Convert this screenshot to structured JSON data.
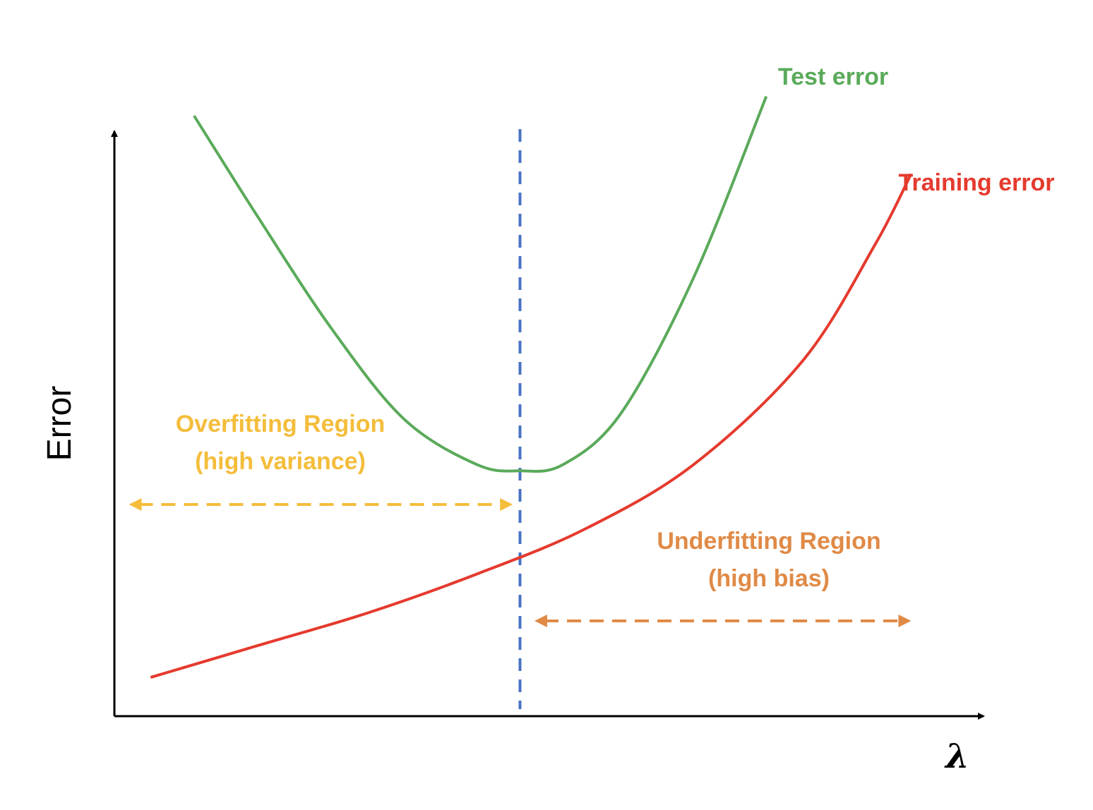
{
  "chart_data": {
    "type": "line",
    "title": "",
    "xlabel": "λ",
    "ylabel": "Error",
    "grid": false,
    "series": [
      {
        "name": "Test error",
        "color": "#5aaa5a",
        "points": [
          [
            1.1,
            9.3
          ],
          [
            2.0,
            7.7
          ],
          [
            3.0,
            6.0
          ],
          [
            4.0,
            4.6
          ],
          [
            5.0,
            3.9
          ],
          [
            5.6,
            3.8
          ],
          [
            6.2,
            3.9
          ],
          [
            7.0,
            4.7
          ],
          [
            8.0,
            6.8
          ],
          [
            9.0,
            9.6
          ]
        ]
      },
      {
        "name": "Training error",
        "color": "#e53a2e",
        "points": [
          [
            0.5,
            0.6
          ],
          [
            2.0,
            1.1
          ],
          [
            3.5,
            1.6
          ],
          [
            5.0,
            2.2
          ],
          [
            6.5,
            2.9
          ],
          [
            8.0,
            3.9
          ],
          [
            9.5,
            5.5
          ],
          [
            10.5,
            7.3
          ],
          [
            11.0,
            8.4
          ]
        ]
      }
    ],
    "optimal_lambda": {
      "x": 5.6,
      "color": "#4a72c4"
    },
    "regions": [
      {
        "id": "overfitting",
        "line1": "Overfitting Region",
        "line2": "(high variance)",
        "color": "#f4bd3b",
        "x_from": 0.2,
        "x_to": 5.5
      },
      {
        "id": "underfitting",
        "line1": "Underfitting Region",
        "line2": "(high bias)",
        "color": "#e08a46",
        "x_from": 5.8,
        "x_to": 11.0
      }
    ],
    "xlim": [
      0,
      12
    ],
    "ylim": [
      0,
      10
    ]
  }
}
